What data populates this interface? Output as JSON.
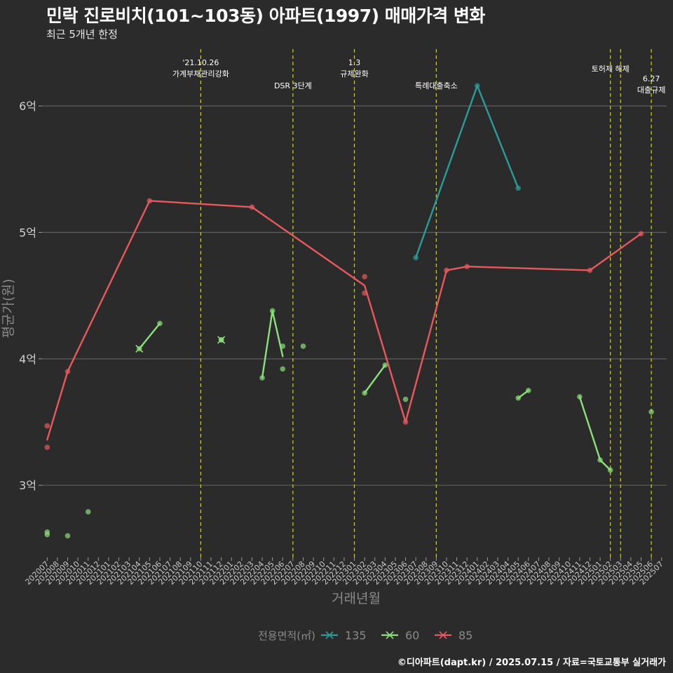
{
  "title": "민락 진로비치(101~103동) 아파트(1997) 매매가격 변화",
  "subtitle": "최근 5개년 한정",
  "caption": "©디아파트(dapt.kr) / 2025.07.15 / 자료=국토교통부 실거래가",
  "chart_data": {
    "type": "line",
    "xlabel": "거래년월",
    "ylabel": "평균가(원)",
    "y_ticks": [
      {
        "value": 3,
        "label": "3억"
      },
      {
        "value": 4,
        "label": "4억"
      },
      {
        "value": 5,
        "label": "5억"
      },
      {
        "value": 6,
        "label": "6억"
      }
    ],
    "ylim": [
      2.43,
      6.45
    ],
    "x_labels": [
      "202007",
      "202008",
      "202009",
      "202010",
      "202011",
      "202012",
      "202101",
      "202102",
      "202103",
      "202104",
      "202105",
      "202106",
      "202107",
      "202108",
      "202109",
      "202110",
      "202111",
      "202112",
      "202201",
      "202202",
      "202203",
      "202204",
      "202205",
      "202206",
      "202207",
      "202208",
      "202209",
      "202210",
      "202211",
      "202212",
      "202301",
      "202302",
      "202303",
      "202304",
      "202305",
      "202306",
      "202307",
      "202308",
      "202309",
      "202310",
      "202311",
      "202312",
      "202401",
      "202402",
      "202403",
      "202404",
      "202405",
      "202406",
      "202407",
      "202408",
      "202409",
      "202410",
      "202411",
      "202412",
      "202501",
      "202502",
      "202503",
      "202504",
      "202505",
      "202506",
      "202507"
    ],
    "legend": {
      "title": "전용면적(㎡)",
      "items": [
        {
          "name": "135",
          "color": "#2a9d98"
        },
        {
          "name": "60",
          "color": "#8be07a"
        },
        {
          "name": "85",
          "color": "#e8595d"
        }
      ]
    },
    "events": [
      {
        "x": "202110",
        "label": "'21.10.26\n가계부채관리강화",
        "label_row": 0
      },
      {
        "x": "202207",
        "label": "DSR 3단계",
        "label_row": 1
      },
      {
        "x": "202301",
        "label": "1.3\n규제완화",
        "label_row": 0
      },
      {
        "x": "202309",
        "label": "특례대출축소",
        "label_row": 1
      },
      {
        "x": "202502",
        "label": "토허제 해제",
        "label_row": 0
      },
      {
        "x": "202503",
        "label": "",
        "label_row": 0
      },
      {
        "x": "202506",
        "label": "6.27\n대출규제",
        "label_row": 2
      }
    ],
    "event_color": "#d4d400",
    "series": [
      {
        "name": "85",
        "color": "#e8595d",
        "line": [
          [
            "202007",
            3.36
          ],
          [
            "202009",
            3.9
          ],
          [
            "202105",
            5.25
          ],
          [
            "202203",
            5.2
          ],
          [
            "202302",
            4.58
          ],
          [
            "202306",
            3.5
          ],
          [
            "202310",
            4.7
          ],
          [
            "202312",
            4.73
          ],
          [
            "202412",
            4.7
          ],
          [
            "202505",
            4.99
          ]
        ],
        "points": [
          [
            "202007",
            3.47
          ],
          [
            "202007",
            3.3
          ],
          [
            "202009",
            3.9
          ],
          [
            "202105",
            5.25
          ],
          [
            "202203",
            5.2
          ],
          [
            "202302",
            4.65
          ],
          [
            "202302",
            4.52
          ],
          [
            "202306",
            3.5
          ],
          [
            "202310",
            4.7
          ],
          [
            "202312",
            4.73
          ],
          [
            "202412",
            4.7
          ],
          [
            "202505",
            4.99
          ]
        ]
      },
      {
        "name": "135",
        "color": "#2a9d98",
        "line": [
          [
            "202307",
            4.8
          ],
          [
            "202401",
            6.16
          ],
          [
            "202405",
            5.35
          ]
        ],
        "points": [
          [
            "202307",
            4.8
          ],
          [
            "202401",
            6.16
          ],
          [
            "202405",
            5.35
          ]
        ]
      },
      {
        "name": "60",
        "color": "#8be07a",
        "segments": [
          [
            [
              "202104",
              4.08
            ],
            [
              "202106",
              4.28
            ]
          ],
          [
            [
              "202204",
              3.85
            ],
            [
              "202205",
              4.38
            ],
            [
              "202206",
              4.02
            ]
          ],
          [
            [
              "202302",
              3.73
            ],
            [
              "202304",
              3.95
            ]
          ],
          [
            [
              "202405",
              3.69
            ],
            [
              "202406",
              3.75
            ]
          ],
          [
            [
              "202411",
              3.7
            ],
            [
              "202501",
              3.2
            ],
            [
              "202502",
              3.12
            ]
          ]
        ],
        "points": [
          [
            "202007",
            2.63
          ],
          [
            "202007",
            2.61
          ],
          [
            "202009",
            2.6
          ],
          [
            "202011",
            2.79
          ],
          [
            "202104",
            4.08
          ],
          [
            "202106",
            4.28
          ],
          [
            "202112",
            4.15
          ],
          [
            "202112",
            4.15
          ],
          [
            "202204",
            3.85
          ],
          [
            "202205",
            4.38
          ],
          [
            "202206",
            4.1
          ],
          [
            "202206",
            3.92
          ],
          [
            "202208",
            4.1
          ],
          [
            "202302",
            3.73
          ],
          [
            "202304",
            3.95
          ],
          [
            "202306",
            3.68
          ],
          [
            "202405",
            3.69
          ],
          [
            "202406",
            3.75
          ],
          [
            "202411",
            3.7
          ],
          [
            "202501",
            3.2
          ],
          [
            "202502",
            3.12
          ],
          [
            "202506",
            3.58
          ]
        ],
        "cross_points": [
          [
            "202104",
            4.08
          ],
          [
            "202112",
            4.15
          ]
        ]
      }
    ]
  }
}
